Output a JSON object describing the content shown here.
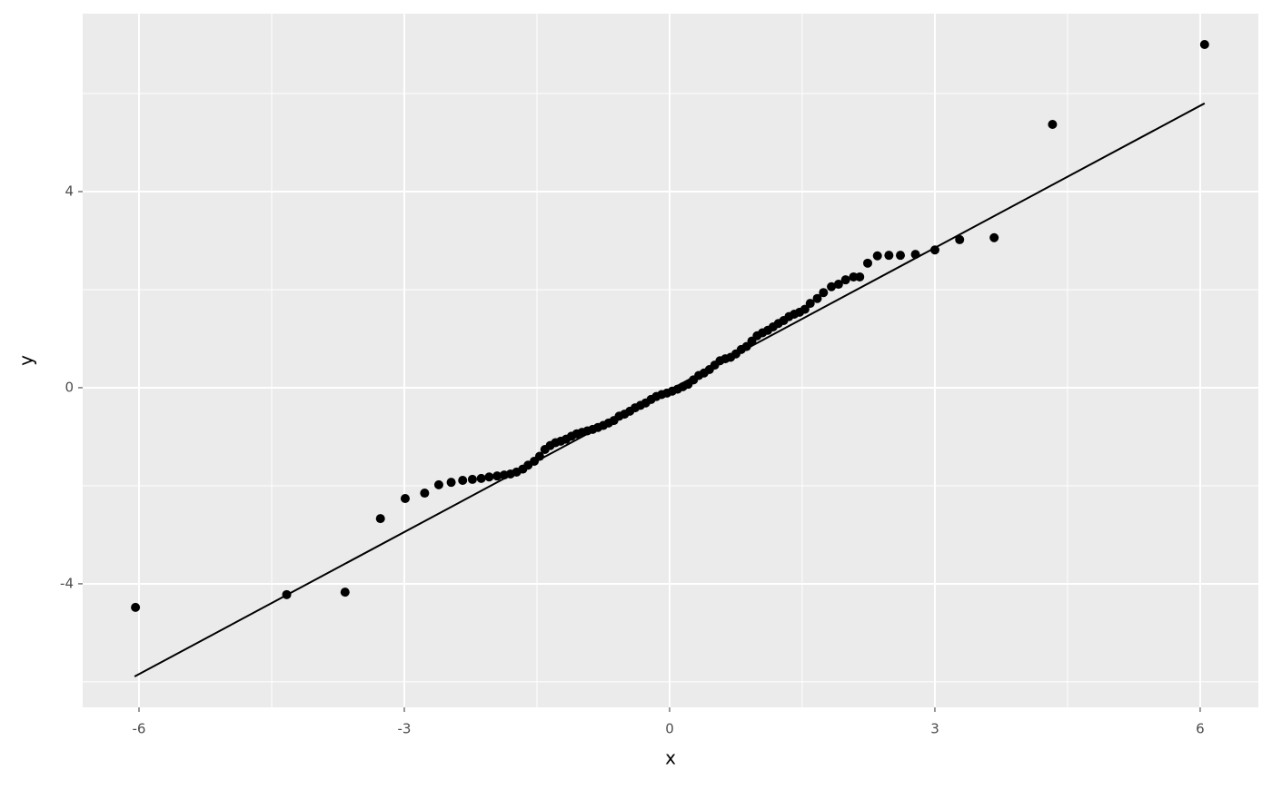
{
  "chart_data": {
    "type": "scatter",
    "xlabel": "x",
    "ylabel": "y",
    "xlim": [
      -6.637,
      6.658
    ],
    "ylim": [
      -6.52,
      7.63
    ],
    "xticks": [
      -6,
      -3,
      0,
      3,
      6
    ],
    "yticks": [
      -4,
      0,
      4
    ],
    "grid": true,
    "color": "#000000",
    "x": [
      -6.04,
      -4.33,
      -3.67,
      -3.27,
      -2.99,
      -2.77,
      -2.61,
      -2.47,
      -2.34,
      -2.23,
      -2.13,
      -2.04,
      -1.95,
      -1.87,
      -1.8,
      -1.73,
      -1.66,
      -1.6,
      -1.53,
      -1.47,
      -1.41,
      -1.35,
      -1.29,
      -1.23,
      -1.17,
      -1.11,
      -1.05,
      -0.99,
      -0.93,
      -0.87,
      -0.81,
      -0.75,
      -0.69,
      -0.63,
      -0.57,
      -0.51,
      -0.45,
      -0.39,
      -0.33,
      -0.27,
      -0.21,
      -0.15,
      -0.09,
      -0.03,
      0.03,
      0.09,
      0.15,
      0.21,
      0.27,
      0.33,
      0.39,
      0.45,
      0.51,
      0.57,
      0.63,
      0.69,
      0.75,
      0.81,
      0.87,
      0.93,
      0.99,
      1.05,
      1.11,
      1.17,
      1.23,
      1.29,
      1.35,
      1.41,
      1.47,
      1.53,
      1.59,
      1.67,
      1.74,
      1.83,
      1.91,
      1.99,
      2.08,
      2.15,
      2.24,
      2.35,
      2.48,
      2.61,
      2.78,
      3.0,
      3.28,
      3.67,
      4.33,
      6.05
    ],
    "values": [
      -4.48,
      -4.22,
      -4.17,
      -2.67,
      -2.26,
      -2.15,
      -1.98,
      -1.93,
      -1.89,
      -1.87,
      -1.85,
      -1.82,
      -1.8,
      -1.78,
      -1.76,
      -1.72,
      -1.66,
      -1.58,
      -1.5,
      -1.4,
      -1.26,
      -1.18,
      -1.12,
      -1.09,
      -1.05,
      -0.99,
      -0.94,
      -0.91,
      -0.88,
      -0.85,
      -0.81,
      -0.77,
      -0.72,
      -0.67,
      -0.58,
      -0.54,
      -0.48,
      -0.41,
      -0.36,
      -0.31,
      -0.24,
      -0.18,
      -0.14,
      -0.11,
      -0.07,
      -0.03,
      0.02,
      0.07,
      0.16,
      0.25,
      0.3,
      0.37,
      0.46,
      0.55,
      0.59,
      0.62,
      0.69,
      0.78,
      0.84,
      0.95,
      1.06,
      1.12,
      1.17,
      1.24,
      1.31,
      1.37,
      1.45,
      1.5,
      1.54,
      1.6,
      1.72,
      1.82,
      1.94,
      2.06,
      2.11,
      2.2,
      2.26,
      2.26,
      2.54,
      2.69,
      2.7,
      2.7,
      2.72,
      2.81,
      3.02,
      3.06,
      5.37,
      7.0
    ],
    "reference_line": {
      "x": [
        -6.05,
        6.05
      ],
      "values": [
        -5.89,
        5.8
      ],
      "color": "#000000"
    }
  }
}
